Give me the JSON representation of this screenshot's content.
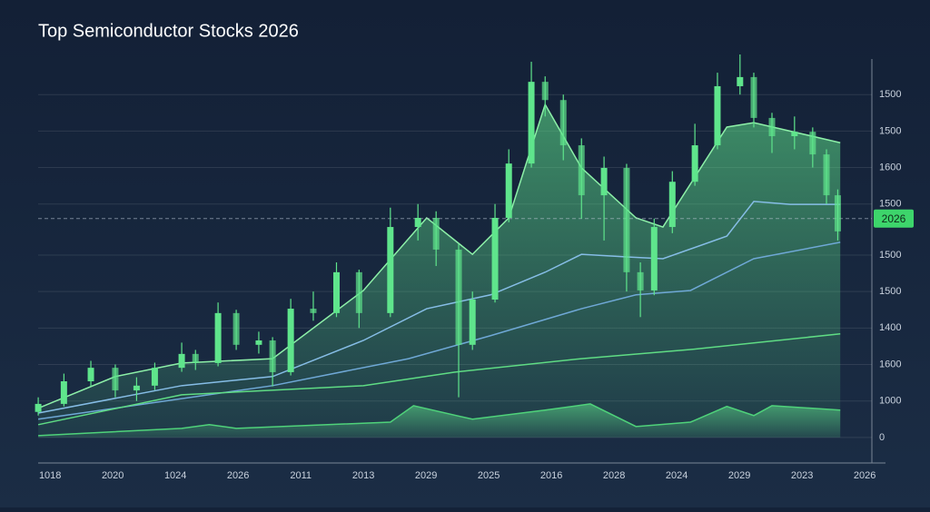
{
  "chart_data": {
    "type": "candlestick",
    "title": "Top Semiconductor Stocks 2026",
    "color": "#5fe58c",
    "x": [
      -0.19,
      0.22,
      0.65,
      1.04,
      1.38,
      1.67,
      2.1,
      2.32,
      2.68,
      2.97,
      3.33,
      3.55,
      3.84,
      4.2,
      4.57,
      4.93,
      5.43,
      5.87,
      6.16,
      6.52,
      6.74,
      7.1,
      7.32,
      7.68,
      7.9,
      8.19,
      8.48,
      8.84,
      9.2,
      9.42,
      9.64,
      9.93,
      10.29,
      10.65,
      11.01,
      11.23,
      11.52,
      11.88,
      12.17,
      12.39,
      12.57
    ],
    "open": [
      70,
      92,
      154,
      191,
      129,
      142,
      191,
      229,
      204,
      341,
      254,
      266,
      179,
      353,
      341,
      453,
      341,
      577,
      602,
      515,
      254,
      378,
      602,
      751,
      975,
      925,
      801,
      664,
      739,
      453,
      403,
      577,
      701,
      801,
      963,
      988,
      876,
      826,
      838,
      776,
      664
    ],
    "high": [
      110,
      175,
      210,
      200,
      165,
      205,
      260,
      240,
      370,
      350,
      290,
      275,
      380,
      400,
      480,
      460,
      630,
      640,
      620,
      530,
      400,
      640,
      790,
      1030,
      990,
      940,
      820,
      770,
      750,
      480,
      600,
      730,
      860,
      1000,
      1050,
      1000,
      890,
      880,
      850,
      790,
      680
    ],
    "low": [
      60,
      85,
      140,
      110,
      100,
      130,
      180,
      185,
      195,
      240,
      230,
      140,
      170,
      320,
      330,
      300,
      330,
      540,
      470,
      110,
      240,
      370,
      590,
      740,
      880,
      760,
      600,
      540,
      400,
      330,
      390,
      560,
      690,
      790,
      940,
      850,
      780,
      790,
      740,
      640,
      540
    ],
    "close": [
      92,
      154,
      191,
      129,
      142,
      191,
      229,
      204,
      341,
      254,
      266,
      179,
      353,
      341,
      453,
      341,
      577,
      602,
      515,
      254,
      378,
      602,
      751,
      975,
      925,
      801,
      664,
      739,
      453,
      403,
      577,
      701,
      801,
      963,
      988,
      876,
      826,
      838,
      776,
      664,
      565
    ],
    "lines": [
      {
        "color": "#8df0a8",
        "fill": true,
        "x": [
          -0.19,
          1.04,
          2.1,
          3.55,
          5,
          6.01,
          6.74,
          7.32,
          7.9,
          8.48,
          9.35,
          9.78,
          10.8,
          11.23,
          12.61
        ],
        "values": [
          80,
          167,
          204,
          216,
          403,
          602,
          502,
          602,
          913,
          739,
          602,
          577,
          851,
          863,
          808
        ]
      },
      {
        "color": "#86bde6",
        "fill": false,
        "x": [
          -0.19,
          2.1,
          3.55,
          5,
          6.01,
          7.03,
          7.9,
          8.48,
          9.2,
          9.78,
          10.8,
          11.23,
          11.81,
          12.61
        ],
        "values": [
          67,
          142,
          167,
          266,
          353,
          391,
          453,
          502,
          495,
          490,
          552,
          647,
          639,
          639
        ]
      },
      {
        "color": "#6fa8d6",
        "fill": false,
        "x": [
          -0.19,
          3.55,
          5.72,
          7.03,
          8.48,
          9.35,
          10.22,
          11.23,
          12.61
        ],
        "values": [
          50,
          142,
          216,
          279,
          353,
          391,
          403,
          490,
          535
        ]
      },
      {
        "color": "#5fdc84",
        "fill": false,
        "x": [
          -0.19,
          2.1,
          5,
          6.45,
          8.48,
          10.22,
          12.61
        ],
        "values": [
          35,
          117,
          142,
          179,
          216,
          241,
          284
        ]
      },
      {
        "color": "#4fd27a",
        "fill": true,
        "x": [
          -0.19,
          2.1,
          2.54,
          2.97,
          5.43,
          5.8,
          6.74,
          7.9,
          8.62,
          9.35,
          10.22,
          10.8,
          11.23,
          11.52,
          12.61
        ],
        "values": [
          5,
          25,
          35,
          25,
          42,
          87,
          50,
          75,
          92,
          30,
          42,
          85,
          60,
          87,
          75
        ]
      }
    ],
    "current": {
      "value": 600,
      "label": "2026"
    },
    "xlim": [
      -0.8,
      13.1
    ],
    "xticks": [
      {
        "value": 0,
        "label": "1018"
      },
      {
        "value": 1,
        "label": "2020"
      },
      {
        "value": 2,
        "label": "1024"
      },
      {
        "value": 3,
        "label": "2026"
      },
      {
        "value": 4,
        "label": "2011"
      },
      {
        "value": 5,
        "label": "2013"
      },
      {
        "value": 6,
        "label": "2029"
      },
      {
        "value": 7,
        "label": "2025"
      },
      {
        "value": 8,
        "label": "2016"
      },
      {
        "value": 9,
        "label": "2028"
      },
      {
        "value": 10,
        "label": "2024"
      },
      {
        "value": 11,
        "label": "2029"
      },
      {
        "value": 12,
        "label": "2023"
      },
      {
        "value": 13,
        "label": "2026"
      }
    ],
    "ylim": [
      -70,
      1050
    ],
    "yticks": [
      0,
      {
        "value": 100,
        "label": "1000"
      },
      {
        "value": 200,
        "label": "1600"
      },
      {
        "value": 300,
        "label": "1400"
      },
      {
        "value": 400,
        "label": "1500"
      },
      {
        "value": 500,
        "label": "1500"
      },
      {
        "value": 640,
        "label": "1500"
      },
      {
        "value": 740,
        "label": "1600"
      },
      {
        "value": 840,
        "label": "1500"
      },
      {
        "value": 940,
        "label": "1500"
      }
    ],
    "grid": true
  }
}
